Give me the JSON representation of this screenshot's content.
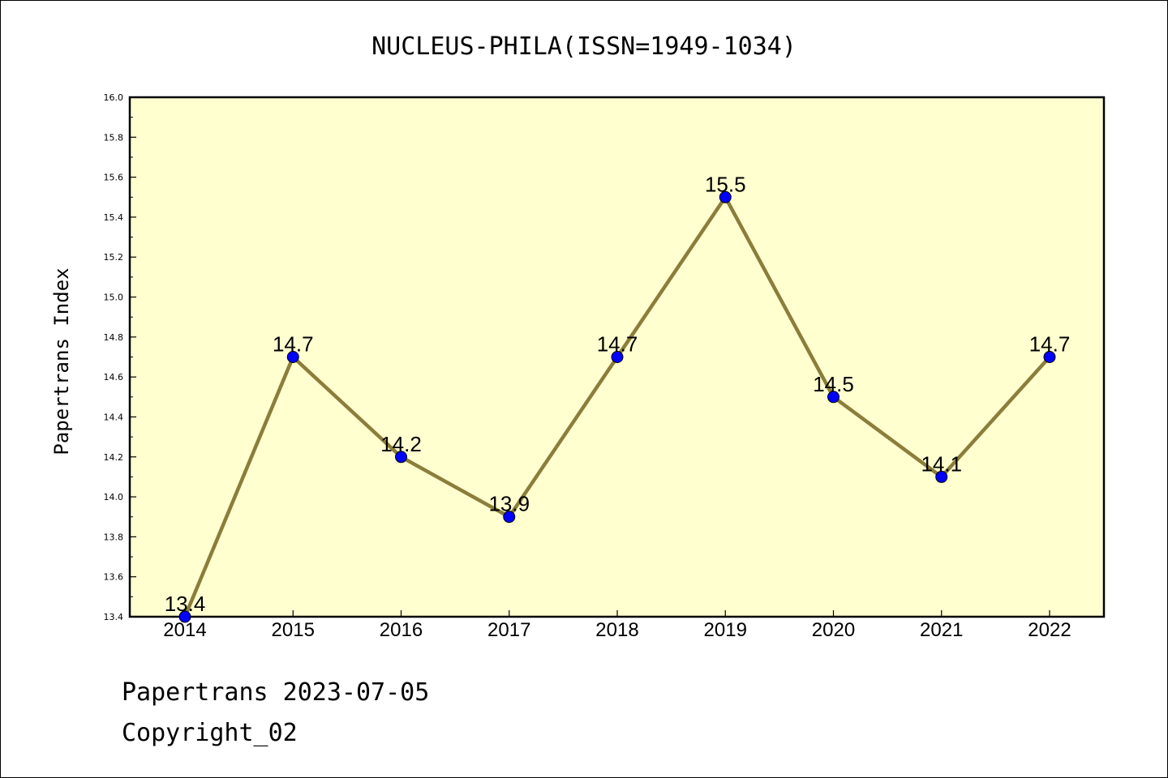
{
  "chart_data": {
    "type": "line",
    "title": "NUCLEUS-PHILA(ISSN=1949-1034)",
    "xlabel": "",
    "ylabel": "Papertrans Index",
    "categories": [
      "2014",
      "2015",
      "2016",
      "2017",
      "2018",
      "2019",
      "2020",
      "2021",
      "2022"
    ],
    "values": [
      13.4,
      14.7,
      14.2,
      13.9,
      14.7,
      15.5,
      14.5,
      14.1,
      14.7
    ],
    "data_labels": [
      "13.4",
      "14.7",
      "14.2",
      "13.9",
      "14.7",
      "15.5",
      "14.5",
      "14.1",
      "14.7"
    ],
    "ylim": [
      13.4,
      16.0
    ],
    "yticks": [
      "13.4",
      "13.6",
      "13.8",
      "14.0",
      "14.2",
      "14.4",
      "14.6",
      "14.8",
      "15.0",
      "15.2",
      "15.4",
      "15.6",
      "15.8",
      "16.0"
    ],
    "grid": false,
    "legend": "none",
    "colors": {
      "plot_background": "#ffffd0",
      "line": "#8b7d3a",
      "marker": "#0000ff"
    }
  },
  "footer": {
    "line1": "Papertrans 2023-07-05",
    "line2": "Copyright_02"
  }
}
